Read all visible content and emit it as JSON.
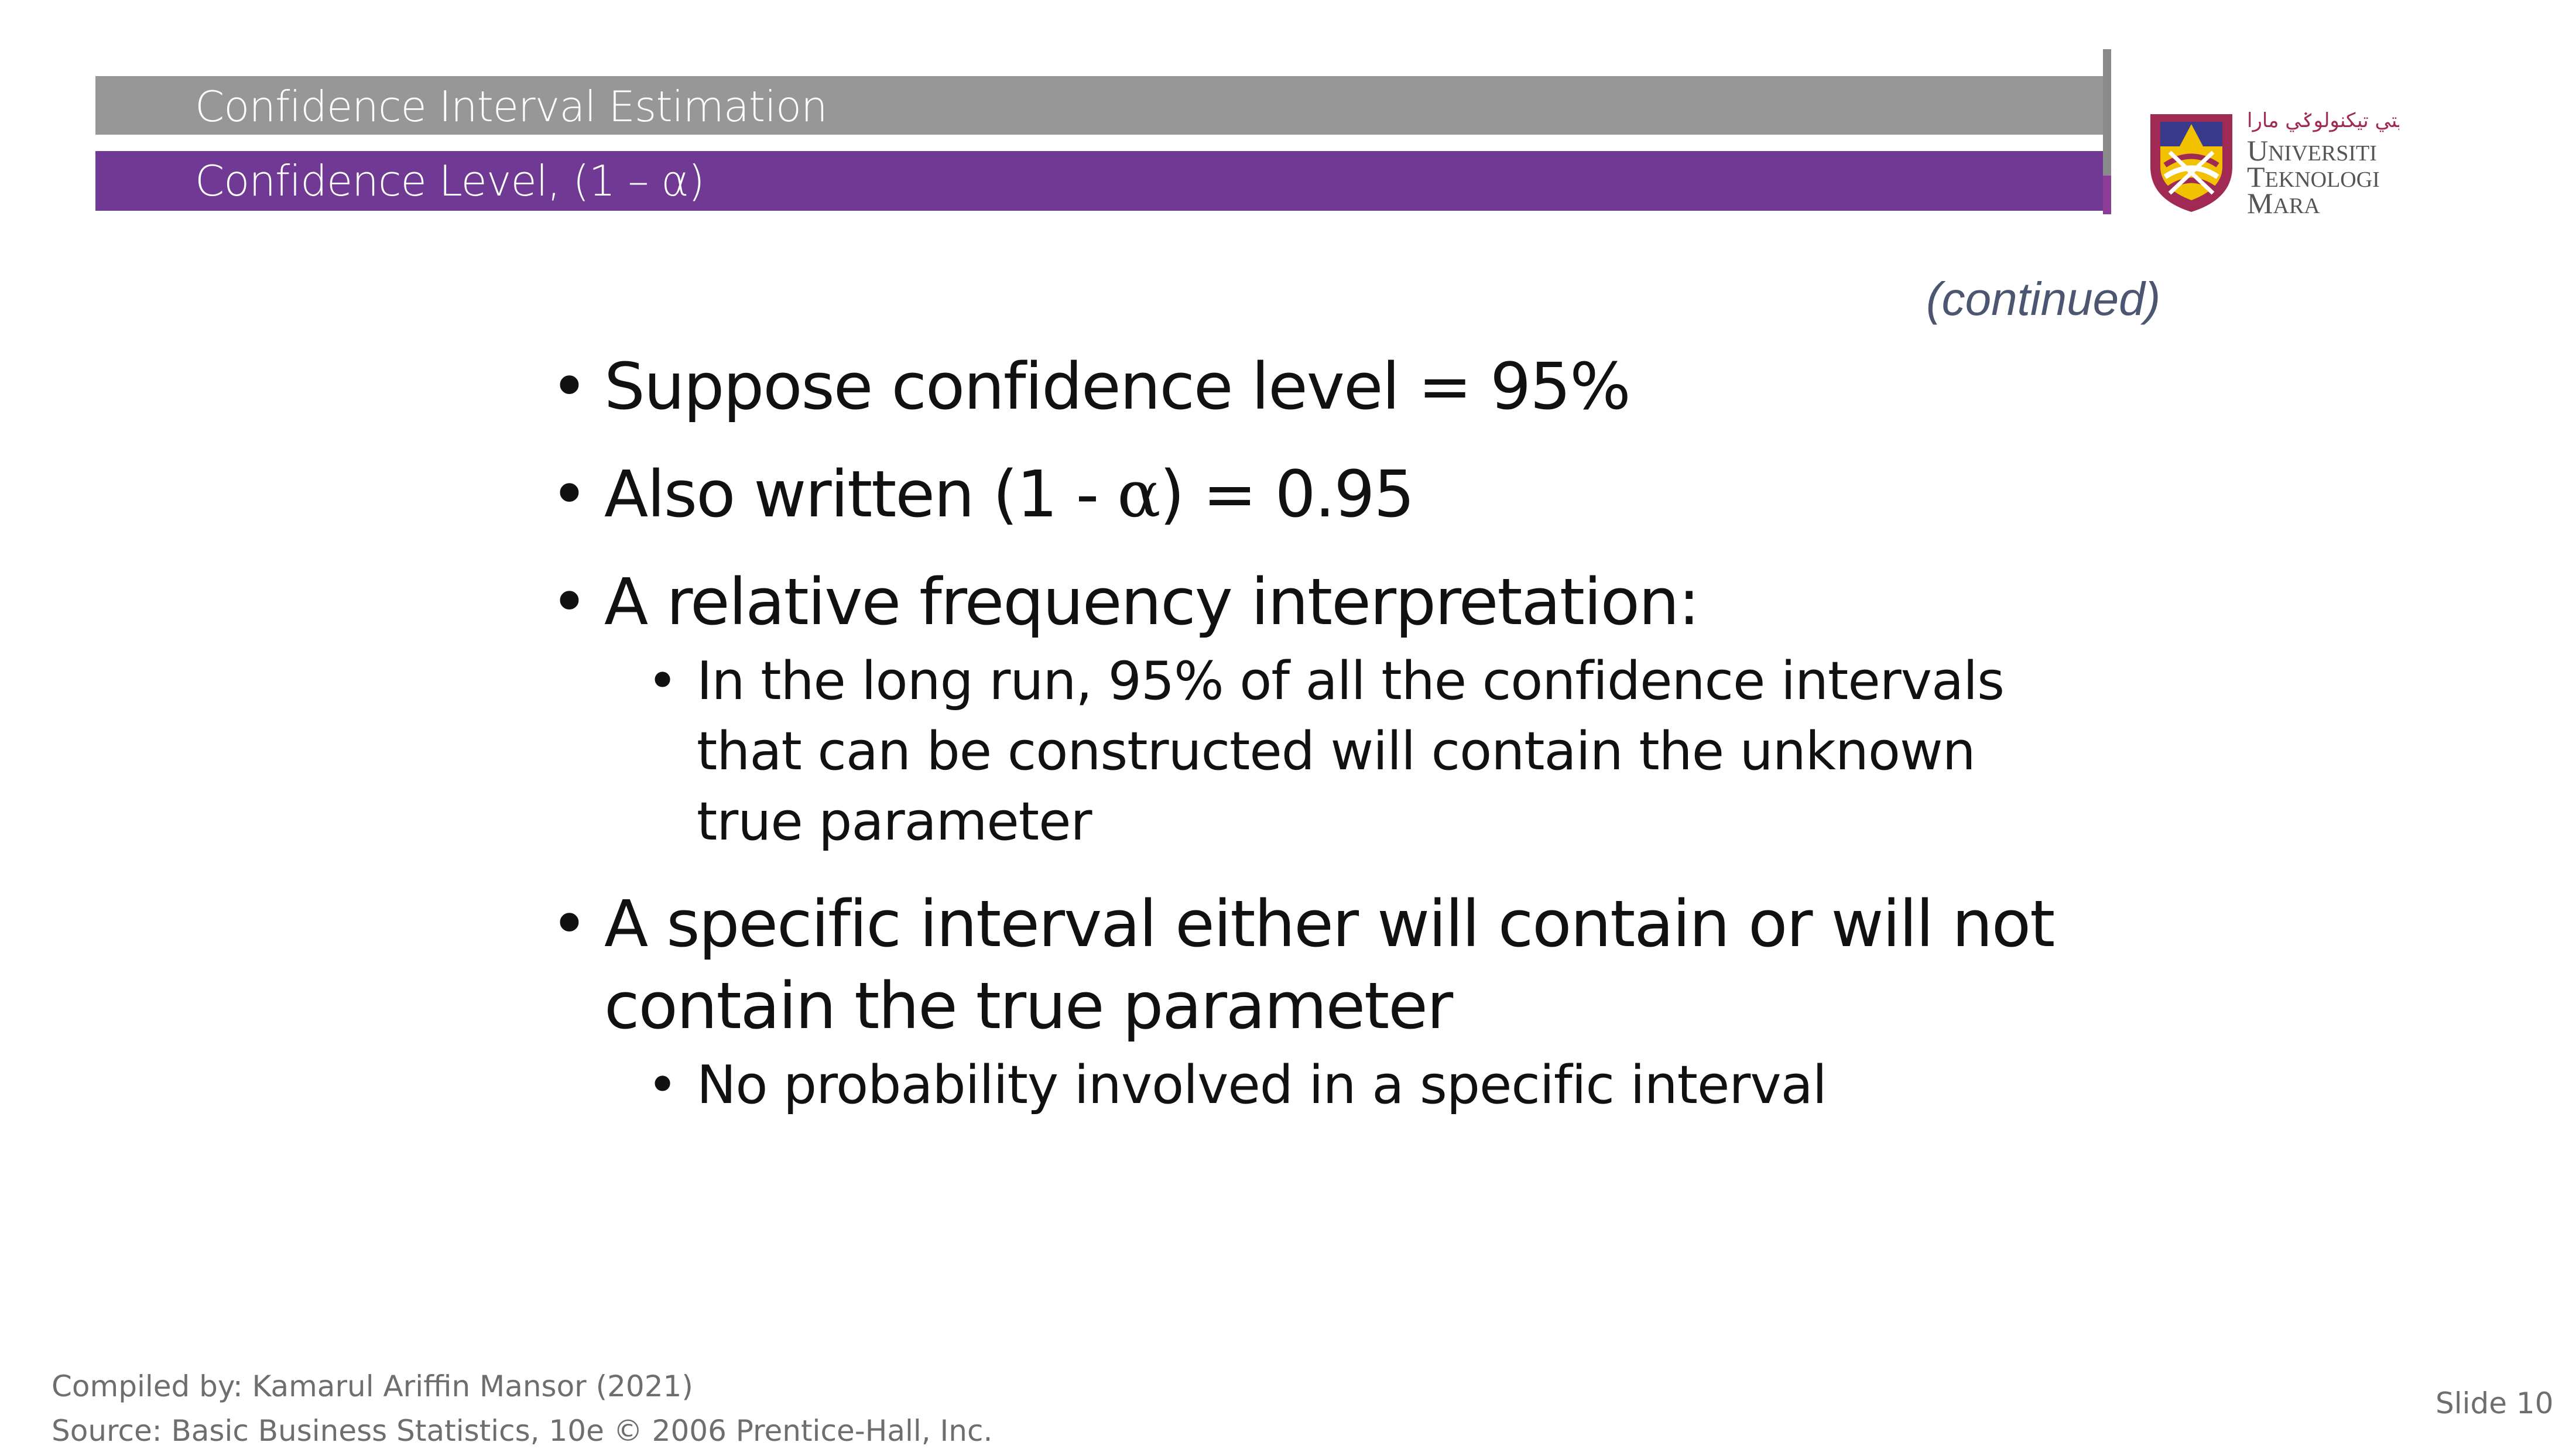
{
  "header": {
    "title": "Confidence Interval Estimation",
    "subtitle": "Confidence Level, (1 – α)"
  },
  "logo": {
    "arabic_text": "اونيۏرسيتي تيكنولوݢي مارا",
    "line1": "UNIVERSITI",
    "line2": "TEKNOLOGI",
    "line3": "MARA"
  },
  "continued": "(continued)",
  "bullets": {
    "b1": "Suppose confidence level = 95%",
    "b2_pre": "Also written (1 - ",
    "b2_greek": "α",
    "b2_post": ") = 0.95",
    "b3": "A relative frequency interpretation:",
    "b3_sub1": "In the long run, 95% of all the confidence intervals that can be constructed will contain the unknown true parameter",
    "b4": "A specific interval either will contain or will not contain the true parameter",
    "b4_sub1": "No probability involved in a specific interval"
  },
  "footer": {
    "compiled_by": "Compiled by: Kamarul Ariffin Mansor (2021)",
    "source": "Source: Basic Business Statistics, 10e © 2006 Prentice-Hall, Inc."
  },
  "slide_number": "Slide 10",
  "colors": {
    "gray_bar": "#979797",
    "purple_bar": "#703a94",
    "logo_magenta": "#a02a54",
    "continued_text": "#4c5670"
  }
}
